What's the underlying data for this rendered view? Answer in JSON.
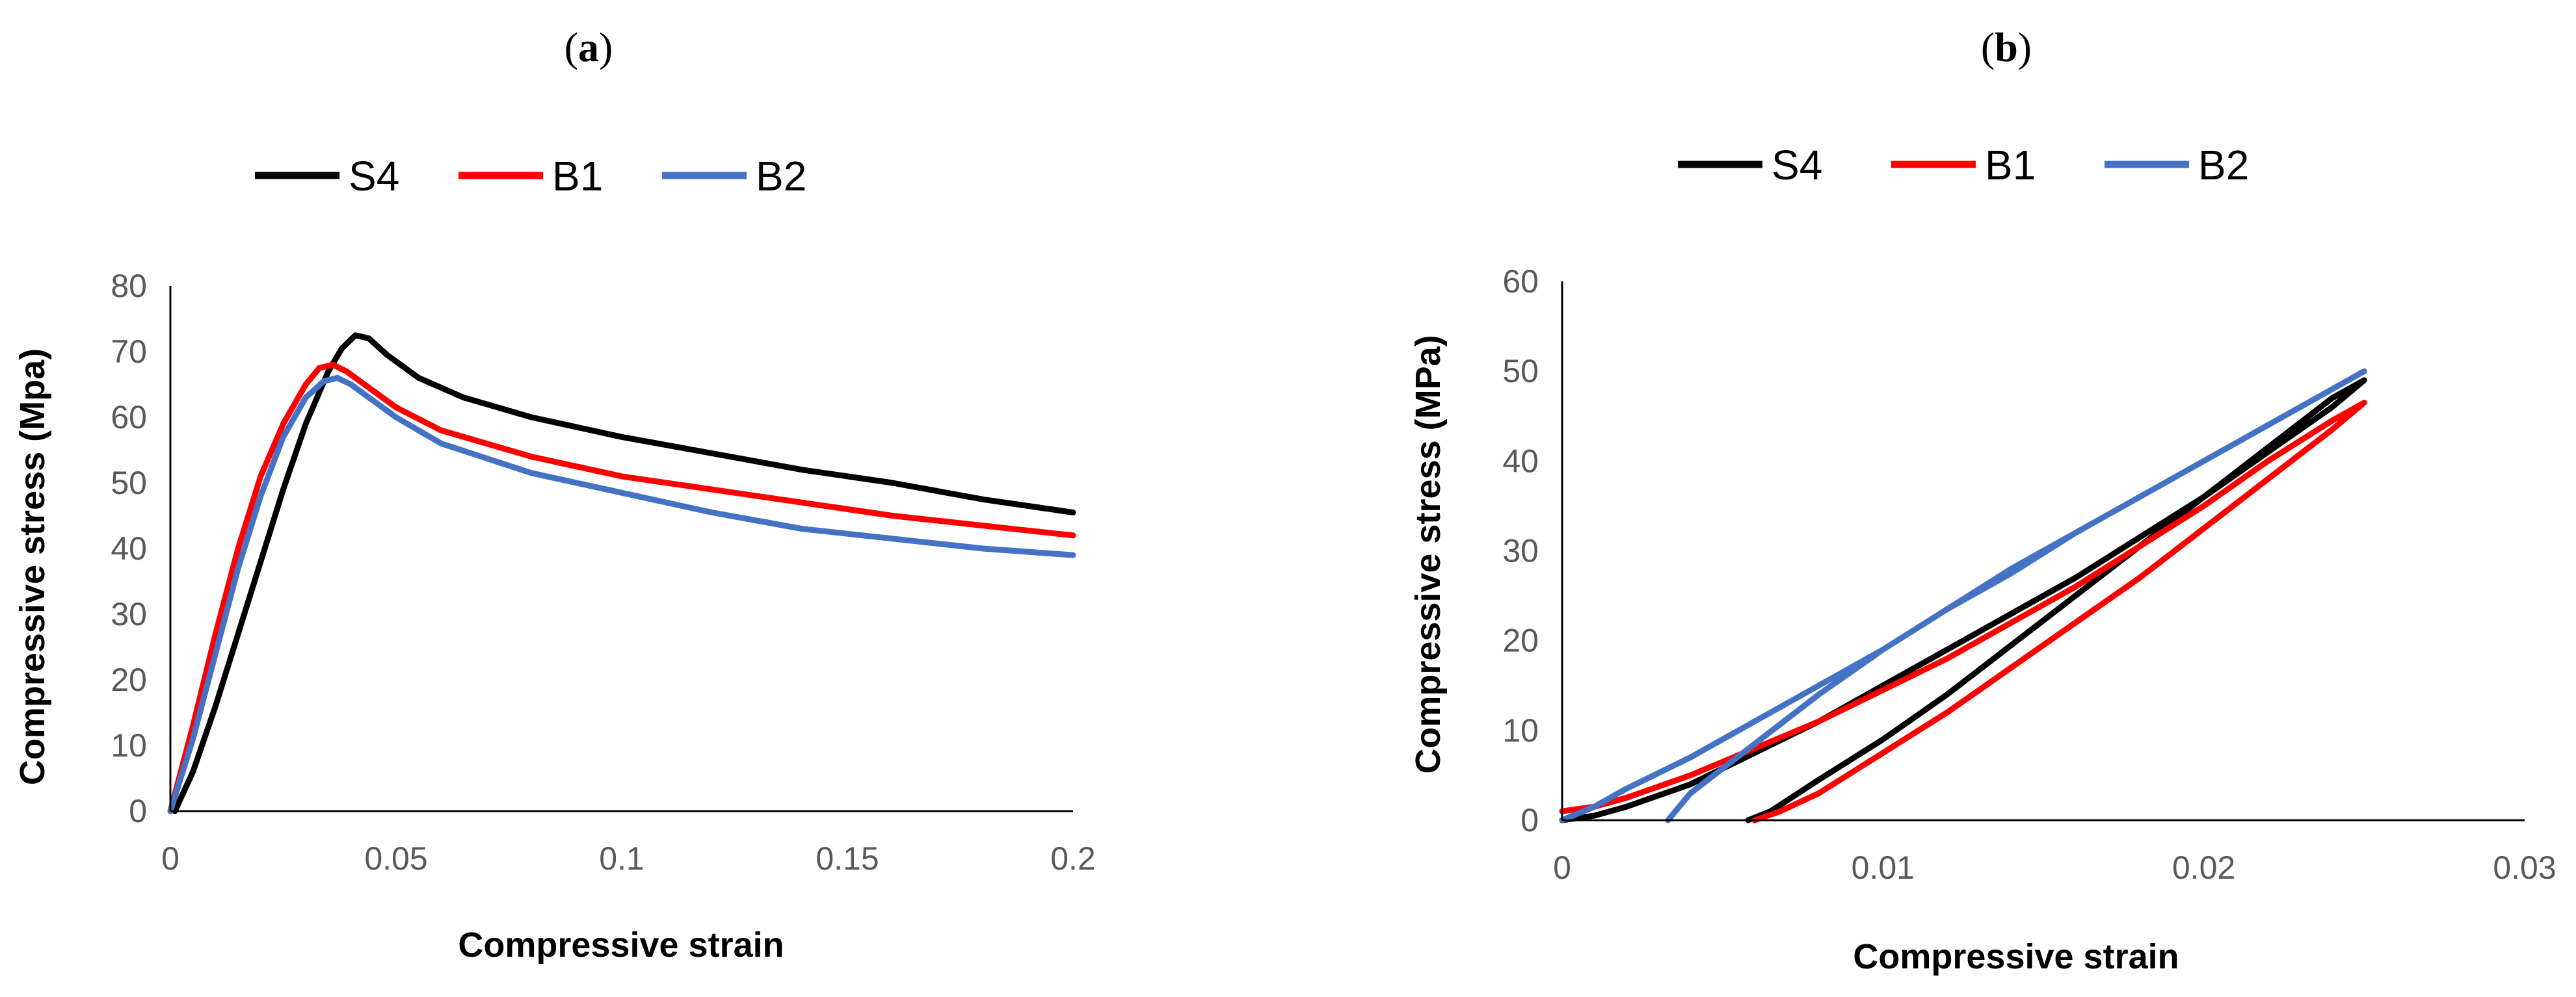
{
  "chart_data": [
    {
      "panel_label": "a",
      "type": "line",
      "title": "",
      "xlabel": "Compressive strain",
      "ylabel": "Compressive stress (Mpa)",
      "xlim": [
        0,
        0.2
      ],
      "ylim": [
        0,
        80
      ],
      "xticks": [
        0,
        0.05,
        0.1,
        0.15,
        0.2
      ],
      "xtick_labels": [
        "0",
        "0.05",
        "0.1",
        "0.15",
        "0.2"
      ],
      "yticks": [
        0,
        10,
        20,
        30,
        40,
        50,
        60,
        70,
        80
      ],
      "ytick_labels": [
        "0",
        "10",
        "20",
        "30",
        "40",
        "50",
        "60",
        "70",
        "80"
      ],
      "legend_position": "top",
      "grid": false,
      "series": [
        {
          "name": "S4",
          "color": "#000000",
          "x": [
            0.001,
            0.005,
            0.01,
            0.015,
            0.02,
            0.025,
            0.03,
            0.035,
            0.038,
            0.041,
            0.044,
            0.048,
            0.055,
            0.065,
            0.08,
            0.1,
            0.12,
            0.14,
            0.16,
            0.18,
            0.2
          ],
          "y": [
            0,
            6,
            16,
            27,
            38,
            49,
            59,
            67,
            70.5,
            72.5,
            72,
            69.5,
            66,
            63,
            60,
            57,
            54.5,
            52,
            50,
            47.5,
            45.5
          ]
        },
        {
          "name": "B1",
          "color": "#ff0000",
          "x": [
            0,
            0.005,
            0.01,
            0.015,
            0.02,
            0.025,
            0.03,
            0.033,
            0.036,
            0.039,
            0.043,
            0.05,
            0.06,
            0.08,
            0.1,
            0.12,
            0.14,
            0.16,
            0.18,
            0.2
          ],
          "y": [
            0,
            13,
            27,
            40,
            51,
            59,
            65,
            67.5,
            68,
            67,
            65,
            61.5,
            58,
            54,
            51,
            49,
            47,
            45,
            43.5,
            42
          ]
        },
        {
          "name": "B2",
          "color": "#4472c4",
          "x": [
            0,
            0.005,
            0.01,
            0.015,
            0.02,
            0.025,
            0.03,
            0.034,
            0.037,
            0.04,
            0.045,
            0.05,
            0.06,
            0.08,
            0.1,
            0.12,
            0.14,
            0.16,
            0.18,
            0.2
          ],
          "y": [
            0,
            11,
            24,
            37,
            48,
            57,
            63,
            65.5,
            66,
            65,
            62.5,
            60,
            56,
            51.5,
            48.5,
            45.5,
            43,
            41.5,
            40,
            39
          ]
        }
      ]
    },
    {
      "panel_label": "b",
      "type": "line",
      "title": "",
      "xlabel": "Compressive strain",
      "ylabel": "Compressive stress (MPa)",
      "xlim": [
        0,
        0.03
      ],
      "ylim": [
        0,
        60
      ],
      "xticks": [
        0,
        0.01,
        0.02,
        0.03
      ],
      "xtick_labels": [
        "0",
        "0.01",
        "0.02",
        "0.03"
      ],
      "yticks": [
        0,
        10,
        20,
        30,
        40,
        50,
        60
      ],
      "ytick_labels": [
        "0",
        "10",
        "20",
        "30",
        "40",
        "50",
        "60"
      ],
      "legend_position": "top",
      "grid": false,
      "series": [
        {
          "name": "S4",
          "color": "#000000",
          "x": [
            0,
            0.001,
            0.002,
            0.004,
            0.006,
            0.008,
            0.01,
            0.012,
            0.014,
            0.016,
            0.018,
            0.02,
            0.022,
            0.024,
            0.025,
            0.024,
            0.022,
            0.02,
            0.018,
            0.016,
            0.014,
            0.012,
            0.01,
            0.008,
            0.0065,
            0.0058
          ],
          "y": [
            0,
            0.5,
            1.5,
            4,
            7.5,
            11,
            15,
            19,
            23,
            27,
            31.5,
            36,
            41,
            46,
            49,
            47,
            41.5,
            36,
            30.5,
            25,
            19.5,
            14,
            9,
            4.5,
            1,
            0
          ]
        },
        {
          "name": "B1",
          "color": "#ff0000",
          "x": [
            0,
            0.001,
            0.002,
            0.004,
            0.006,
            0.008,
            0.01,
            0.012,
            0.014,
            0.016,
            0.018,
            0.02,
            0.022,
            0.024,
            0.025,
            0.024,
            0.022,
            0.02,
            0.018,
            0.016,
            0.014,
            0.012,
            0.01,
            0.008,
            0.0068,
            0.006
          ],
          "y": [
            1,
            1.5,
            2.5,
            5,
            8,
            11,
            14.5,
            18,
            22,
            26,
            30.5,
            35,
            40,
            44.5,
            46.5,
            43.5,
            38,
            32.5,
            27,
            22,
            17,
            12,
            7.5,
            3,
            1,
            0
          ]
        },
        {
          "name": "B2",
          "color": "#4472c4",
          "x": [
            0,
            0.001,
            0.002,
            0.004,
            0.006,
            0.008,
            0.01,
            0.012,
            0.014,
            0.016,
            0.018,
            0.02,
            0.022,
            0.024,
            0.025,
            0.024,
            0.022,
            0.02,
            0.018,
            0.016,
            0.014,
            0.012,
            0.01,
            0.008,
            0.006,
            0.004,
            0.0033
          ],
          "y": [
            0,
            1.5,
            3.5,
            7,
            11,
            15,
            19,
            23.5,
            27.5,
            32,
            36,
            40,
            44,
            48,
            50,
            48,
            44,
            40,
            36,
            32,
            28,
            23.5,
            19,
            14,
            8.5,
            3,
            0
          ]
        }
      ]
    }
  ]
}
